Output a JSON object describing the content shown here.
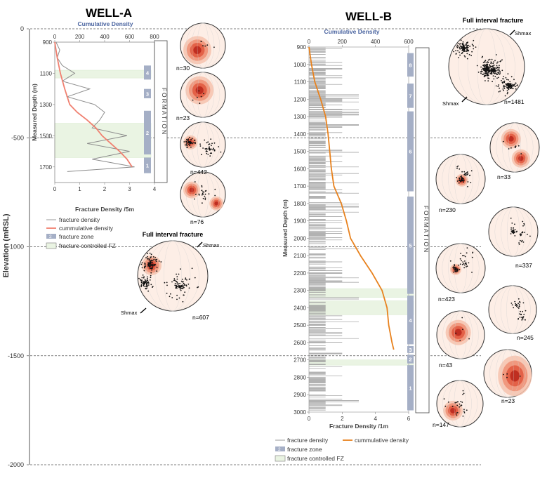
{
  "elevation_axis": {
    "label": "Elevation (mRSL)",
    "ticks": [
      0,
      -500,
      -1000,
      -1500,
      -2000
    ]
  },
  "chart_data": [
    {
      "id": "well-a",
      "type": "line",
      "title": "WELL-A",
      "ylabel": "Measured Depth (m)",
      "xlabel": "Fracture Density /5m",
      "x2label": "Cumulative Density",
      "ylim": [
        900,
        1800
      ],
      "xlim": [
        0,
        4
      ],
      "x2lim": [
        0,
        800
      ],
      "yticks": [
        900,
        1100,
        1300,
        1500,
        1700
      ],
      "xticks": [
        0,
        1,
        2,
        3,
        4
      ],
      "x2ticks": [
        0,
        200,
        400,
        600,
        800
      ],
      "formation_label": "FORMATION",
      "zones": [
        {
          "label": "4",
          "top": 1050,
          "bottom": 1140
        },
        {
          "label": "3",
          "top": 1200,
          "bottom": 1260
        },
        {
          "label": "2",
          "top": 1340,
          "bottom": 1620
        },
        {
          "label": "1",
          "top": 1640,
          "bottom": 1740
        }
      ],
      "fz_bands": [
        [
          1080,
          1130
        ],
        [
          1420,
          1640
        ]
      ],
      "series": [
        {
          "name": "fracture density",
          "depth": [
            900,
            950,
            1000,
            1050,
            1100,
            1150,
            1200,
            1250,
            1300,
            1350,
            1400,
            1450,
            1500,
            1550,
            1600,
            1650,
            1700,
            1730
          ],
          "values": [
            0.05,
            0.2,
            0.1,
            0.3,
            0.8,
            0.3,
            1.4,
            0.5,
            1.6,
            2.0,
            1.8,
            1.5,
            2.9,
            1.3,
            3.0,
            1.5,
            3.2,
            0.5
          ]
        },
        {
          "name": "cummulative density",
          "depth": [
            900,
            1000,
            1100,
            1200,
            1300,
            1350,
            1400,
            1450,
            1500,
            1550,
            1600,
            1650,
            1700
          ],
          "values": [
            0,
            20,
            45,
            80,
            120,
            180,
            260,
            330,
            380,
            450,
            520,
            580,
            620
          ]
        }
      ],
      "legend": {
        "density": "fracture density",
        "cumulative": "cummulative density",
        "zone_swatch": "2",
        "zone": "fracture zone",
        "fz": "fracture controlled FZ"
      }
    },
    {
      "id": "well-b",
      "type": "line",
      "title": "WELL-B",
      "ylabel": "Measured Depth (m)",
      "xlabel": "Fracture Density /1m",
      "x2label": "Cumulative Density",
      "ylim": [
        900,
        3000
      ],
      "xlim": [
        0,
        6
      ],
      "x2lim": [
        0,
        600
      ],
      "yticks": [
        900,
        1000,
        1100,
        1200,
        1300,
        1400,
        1500,
        1600,
        1700,
        1800,
        1900,
        2000,
        2100,
        2200,
        2300,
        2400,
        2500,
        2600,
        2700,
        2800,
        2900,
        3000
      ],
      "xticks": [
        0,
        2,
        4,
        6
      ],
      "x2ticks": [
        0,
        200,
        400,
        600
      ],
      "formation_label": "FORMATION",
      "zones": [
        {
          "label": "8",
          "top": 935,
          "bottom": 1070
        },
        {
          "label": "7",
          "top": 1110,
          "bottom": 1250
        },
        {
          "label": "6",
          "top": 1270,
          "bottom": 1730
        },
        {
          "label": "5",
          "top": 1760,
          "bottom": 2320
        },
        {
          "label": "4",
          "top": 2330,
          "bottom": 2610
        },
        {
          "label": "3",
          "top": 2620,
          "bottom": 2660
        },
        {
          "label": "2",
          "top": 2670,
          "bottom": 2720
        },
        {
          "label": "1",
          "top": 2730,
          "bottom": 2990
        }
      ],
      "fz_bands": [
        [
          2290,
          2340
        ],
        [
          2360,
          2440
        ],
        [
          2700,
          2730
        ]
      ],
      "series": [
        {
          "name": "cumulative density",
          "depth": [
            900,
            1000,
            1100,
            1200,
            1300,
            1400,
            1500,
            1600,
            1700,
            1800,
            1900,
            2000,
            2100,
            2200,
            2300,
            2400,
            2500,
            2600,
            2640
          ],
          "values": [
            0,
            15,
            35,
            70,
            100,
            115,
            125,
            135,
            150,
            195,
            225,
            250,
            310,
            380,
            440,
            470,
            480,
            500,
            510
          ]
        }
      ],
      "legend": {
        "density": "fracture density",
        "cumulative": "cummulative density",
        "zone_swatch": "2",
        "zone": "fracture zone",
        "fz": "fracture controlled FZ"
      }
    }
  ],
  "stereonets": {
    "well_a_zones": [
      "n=30",
      "n=23",
      "n=442",
      "n=76"
    ],
    "well_a_full": {
      "title": "Full interval fracture",
      "n": "n=607",
      "shmax": "Shmax"
    },
    "well_b_full": {
      "title": "Full interval fracture",
      "n": "n=1481",
      "shmax": "Shmax"
    },
    "well_b_zones": [
      "n=33",
      "n=230",
      "n=337",
      "n=423",
      "n=245",
      "n=43",
      "n=23",
      "n=147"
    ]
  }
}
